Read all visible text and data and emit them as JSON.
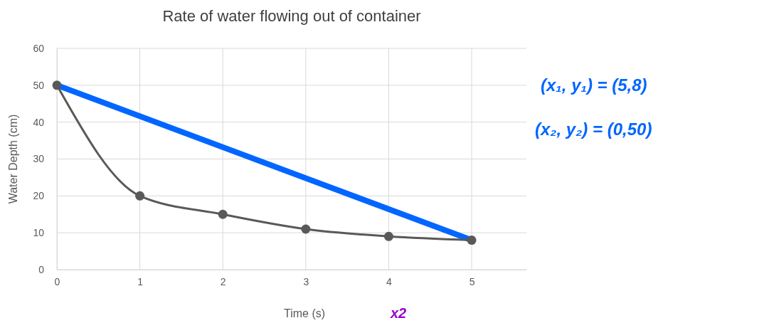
{
  "chart_data": {
    "type": "line",
    "title": "Rate of water flowing out of container",
    "xlabel": "Time (s)",
    "ylabel": "Water Depth (cm)",
    "xlim": [
      0,
      5.66
    ],
    "xticks": [
      0,
      1,
      2,
      3,
      4,
      5
    ],
    "ylim": [
      0,
      60
    ],
    "yticks": [
      0,
      10,
      20,
      30,
      40,
      50,
      60
    ],
    "grid": true,
    "series": [
      {
        "x": [
          0,
          1,
          2,
          3,
          4,
          5
        ],
        "values": [
          50,
          20,
          15,
          11,
          9,
          8
        ],
        "color": "#595959",
        "marker": "circle"
      },
      {
        "x": [
          0,
          5
        ],
        "values": [
          50,
          8
        ],
        "color": "#0066ff",
        "marker": "none"
      }
    ],
    "annotations": [
      "(x₁, y₁) = (5,8)",
      "(x₂, y₂) = (0,50)",
      "x2"
    ]
  }
}
